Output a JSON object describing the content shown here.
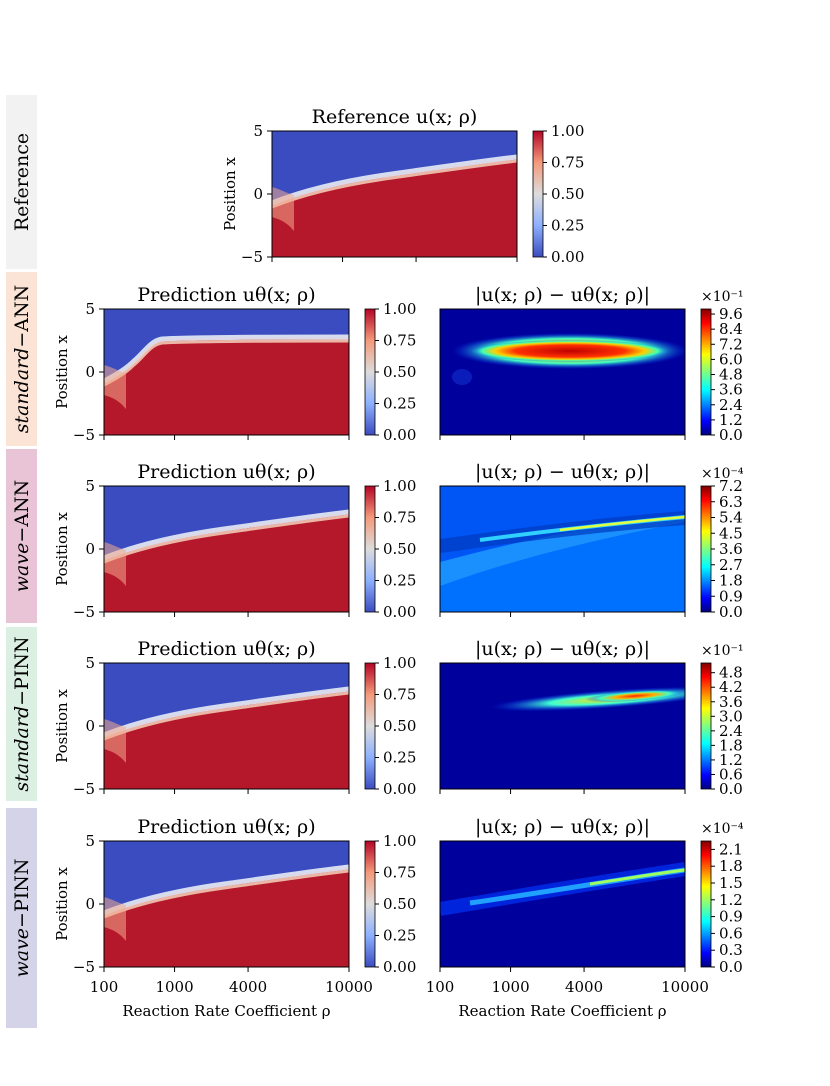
{
  "colors": {
    "reference": "#f2f2f2",
    "standard_ann": "#fbe3d6",
    "wave_ann": "#e8c4d6",
    "standard_pinn": "#dcefe3",
    "wave_pinn": "#d5d3e8"
  },
  "row_labels": {
    "reference": "Reference",
    "standard_ann": {
      "prefix": "standard",
      "suffix": "−ANN"
    },
    "wave_ann": {
      "prefix": "wave",
      "suffix": "−ANN"
    },
    "standard_pinn": {
      "prefix": "standard",
      "suffix": "−PINN"
    },
    "wave_pinn": {
      "prefix": "wave",
      "suffix": "−PINN"
    }
  },
  "chart_data": [
    {
      "type": "heatmap",
      "id": "reference",
      "title": "Reference u(x; ρ)",
      "xlabel": "",
      "ylabel": "Position x",
      "x_ticks": [],
      "y_ticks": [
        "5",
        "0",
        "−5"
      ],
      "ylim": [
        -5,
        5
      ],
      "colormap": "coolwarm",
      "colorbar": {
        "ticks": [
          "1.00",
          "0.75",
          "0.50",
          "0.25",
          "0.00"
        ],
        "range": [
          0,
          1
        ]
      }
    },
    {
      "type": "heatmap",
      "id": "standard_ann_pred",
      "title": "Prediction uθ(x; ρ)",
      "ylabel": "Position x",
      "y_ticks": [
        "5",
        "0",
        "−5"
      ],
      "colormap": "coolwarm",
      "colorbar": {
        "ticks": [
          "1.00",
          "0.75",
          "0.50",
          "0.25",
          "0.00"
        ],
        "range": [
          0,
          1
        ]
      }
    },
    {
      "type": "heatmap",
      "id": "standard_ann_err",
      "title": "|u(x; ρ) − uθ(x; ρ)|",
      "colormap": "jet",
      "colorbar": {
        "exponent": "×10⁻¹",
        "ticks": [
          "9.6",
          "8.4",
          "7.2",
          "6.0",
          "4.8",
          "3.6",
          "2.4",
          "1.2",
          "0.0"
        ],
        "range": [
          0,
          10
        ]
      }
    },
    {
      "type": "heatmap",
      "id": "wave_ann_pred",
      "title": "Prediction uθ(x; ρ)",
      "ylabel": "Position x",
      "y_ticks": [
        "5",
        "0",
        "−5"
      ],
      "colormap": "coolwarm",
      "colorbar": {
        "ticks": [
          "1.00",
          "0.75",
          "0.50",
          "0.25",
          "0.00"
        ],
        "range": [
          0,
          1
        ]
      }
    },
    {
      "type": "heatmap",
      "id": "wave_ann_err",
      "title": "|u(x; ρ) − uθ(x; ρ)|",
      "colormap": "jet",
      "colorbar": {
        "exponent": "×10⁻⁴",
        "ticks": [
          "7.2",
          "6.3",
          "5.4",
          "4.5",
          "3.6",
          "2.7",
          "1.8",
          "0.9",
          "0.0"
        ],
        "range": [
          0,
          7.2
        ]
      }
    },
    {
      "type": "heatmap",
      "id": "standard_pinn_pred",
      "title": "Prediction uθ(x; ρ)",
      "ylabel": "Position x",
      "y_ticks": [
        "5",
        "0",
        "−5"
      ],
      "colormap": "coolwarm",
      "colorbar": {
        "ticks": [
          "1.00",
          "0.75",
          "0.50",
          "0.25",
          "0.00"
        ],
        "range": [
          0,
          1
        ]
      }
    },
    {
      "type": "heatmap",
      "id": "standard_pinn_err",
      "title": "|u(x; ρ) − uθ(x; ρ)|",
      "colormap": "jet",
      "colorbar": {
        "exponent": "×10⁻¹",
        "ticks": [
          "4.8",
          "4.2",
          "3.6",
          "3.0",
          "2.4",
          "1.8",
          "1.2",
          "0.6",
          "0.0"
        ],
        "range": [
          0,
          5.2
        ]
      }
    },
    {
      "type": "heatmap",
      "id": "wave_pinn_pred",
      "title": "Prediction uθ(x; ρ)",
      "xlabel": "Reaction Rate Coefficient ρ",
      "ylabel": "Position x",
      "x_ticks": [
        "100",
        "1000",
        "4000",
        "10000"
      ],
      "y_ticks": [
        "5",
        "0",
        "−5"
      ],
      "colormap": "coolwarm",
      "colorbar": {
        "ticks": [
          "1.00",
          "0.75",
          "0.50",
          "0.25",
          "0.00"
        ],
        "range": [
          0,
          1
        ]
      }
    },
    {
      "type": "heatmap",
      "id": "wave_pinn_err",
      "title": "|u(x; ρ) − uθ(x; ρ)|",
      "xlabel": "Reaction Rate Coefficient ρ",
      "x_ticks": [
        "100",
        "1000",
        "4000",
        "10000"
      ],
      "colormap": "jet",
      "colorbar": {
        "exponent": "×10⁻⁴",
        "ticks": [
          "2.1",
          "1.8",
          "1.5",
          "1.2",
          "0.9",
          "0.6",
          "0.3",
          "0.0"
        ],
        "range": [
          0,
          2.25
        ]
      }
    }
  ]
}
